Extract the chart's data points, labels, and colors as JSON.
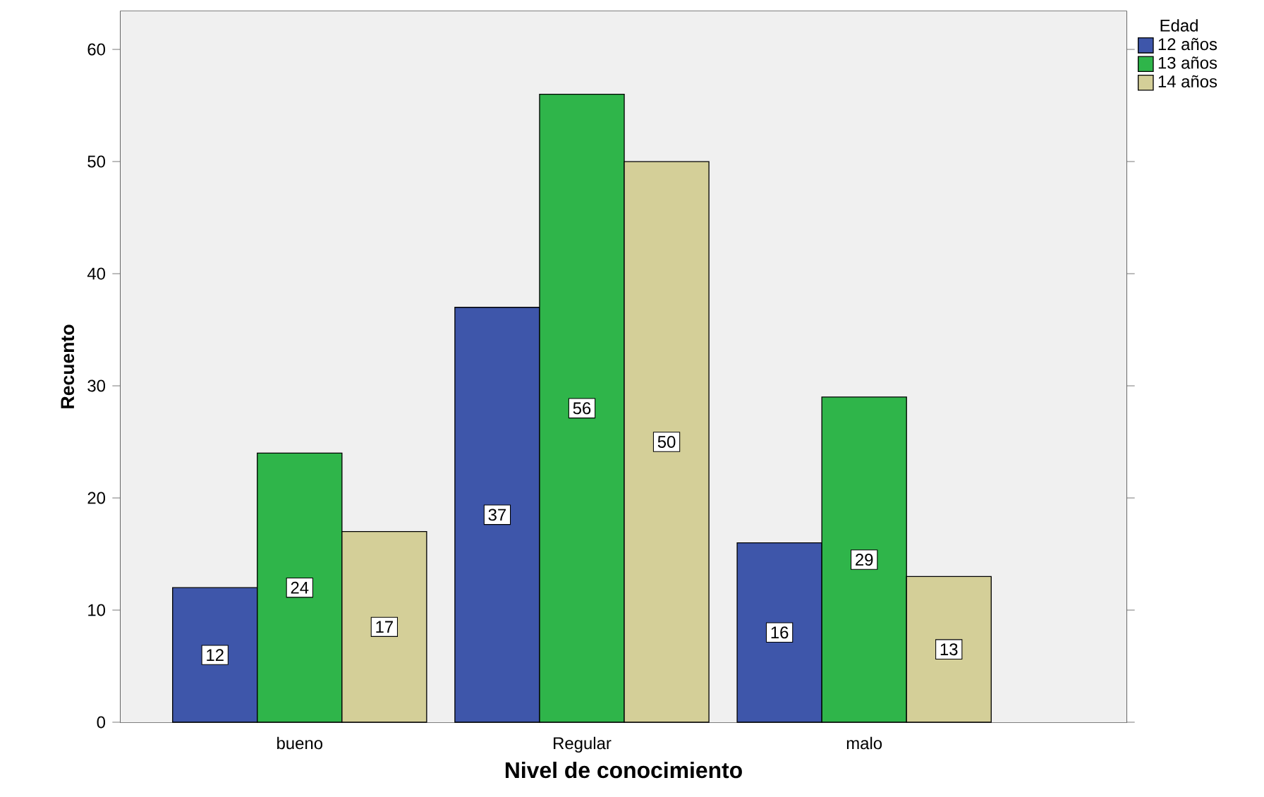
{
  "chart_data": {
    "type": "bar",
    "xlabel": "Nivel de conocimiento",
    "ylabel": "Recuento",
    "legend_title": "Edad",
    "categories": [
      "bueno",
      "Regular",
      "malo"
    ],
    "series": [
      {
        "name": "12 años",
        "color": "#3e56aa",
        "values": [
          12,
          37,
          16
        ]
      },
      {
        "name": "13 años",
        "color": "#2fb54a",
        "values": [
          24,
          56,
          29
        ]
      },
      {
        "name": "14 años",
        "color": "#d4cf98",
        "values": [
          17,
          50,
          13
        ]
      }
    ],
    "ylim": [
      0,
      63.4
    ],
    "yticks": [
      0,
      10,
      20,
      30,
      40,
      50,
      60
    ],
    "data_labels": true,
    "legend": "top right"
  }
}
